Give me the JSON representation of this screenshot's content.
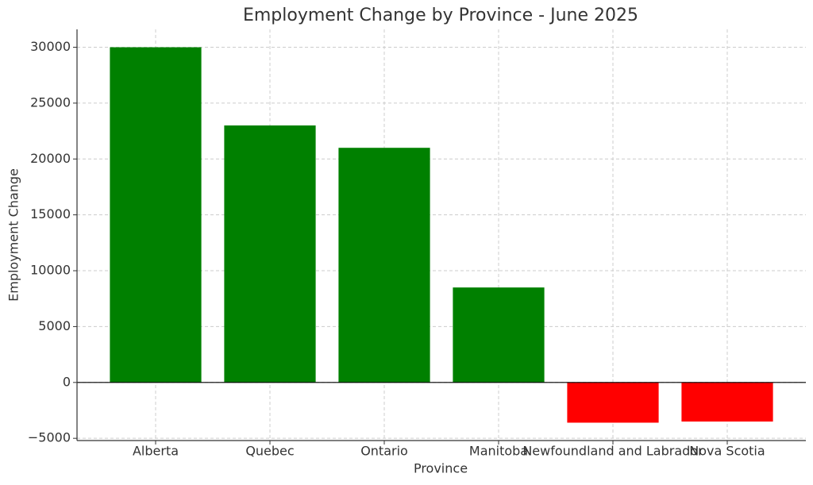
{
  "chart_data": {
    "type": "bar",
    "title": "Employment Change by Province - June 2025",
    "x_label": "Province",
    "y_label": "Employment Change",
    "categories": [
      "Alberta",
      "Quebec",
      "Ontario",
      "Manitoba",
      "Newfoundland and Labrador",
      "Nova Scotia"
    ],
    "values": [
      30000,
      23000,
      21000,
      8500,
      -3600,
      -3500
    ],
    "colors": [
      "#008000",
      "#008000",
      "#008000",
      "#008000",
      "#ff0000",
      "#ff0000"
    ],
    "ylim": [
      -5200,
      31600
    ],
    "yticks": [
      {
        "value": -5000,
        "label": "−5000"
      },
      0,
      5000,
      10000,
      15000,
      20000,
      25000,
      30000
    ],
    "grid": true
  }
}
